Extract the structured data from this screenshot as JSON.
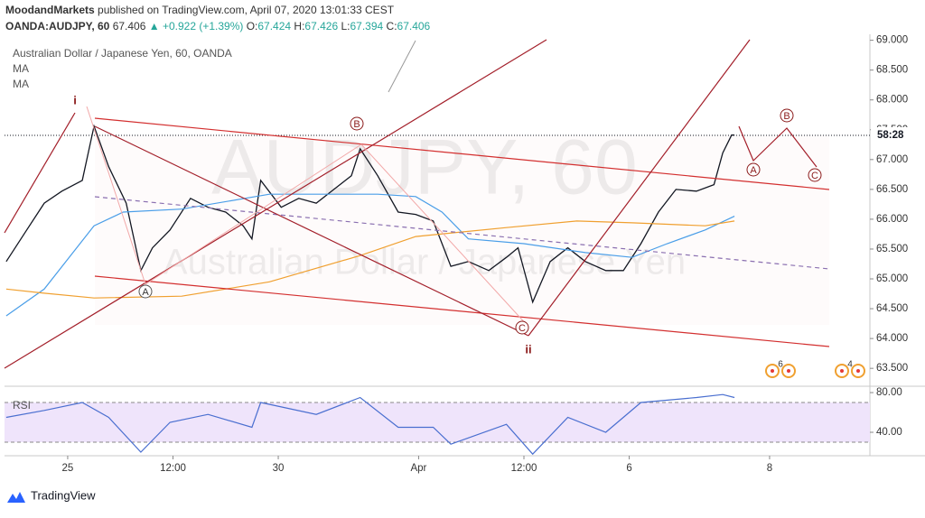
{
  "header": {
    "publisher": "MoodandMarkets",
    "published": "published on TradingView.com, April 07, 2020 13:01:33 CEST",
    "symbol": "OANDA:AUDJPY, 60",
    "last": "67.406",
    "change": "▲ +0.922 (+1.39%)",
    "open_label": "O:",
    "open": "67.424",
    "high_label": "H:",
    "high": "67.426",
    "low_label": "L:",
    "low": "67.394",
    "close_label": "C:",
    "close": "67.406"
  },
  "watermark": {
    "symbol": "AUDJPY, 60",
    "name": "Australian Dollar / Japanese Yen"
  },
  "waves": {
    "i": "i",
    "ii": "ii",
    "a1": "A",
    "b1": "B",
    "c1": "C",
    "a2": "A",
    "b2": "B",
    "c2": "C"
  },
  "events": [
    "6",
    "4"
  ],
  "countdown": "58:28",
  "footer": "TradingView",
  "chart_data": [
    {
      "type": "line",
      "xlim": [
        -21.6,
        274.3
      ],
      "ylim": [
        63.2,
        69.1
      ],
      "yticks": [
        {
          "value": 63.5,
          "label": "63.500"
        },
        {
          "value": 64.0,
          "label": "64.000"
        },
        {
          "value": 64.5,
          "label": "64.500"
        },
        {
          "value": 65.0,
          "label": "65.000"
        },
        {
          "value": 65.5,
          "label": "65.500"
        },
        {
          "value": 66.0,
          "label": "66.000"
        },
        {
          "value": 66.5,
          "label": "66.500"
        },
        {
          "value": 67.0,
          "label": "67.000"
        },
        {
          "value": 67.5,
          "label": "67.500"
        },
        {
          "value": 68.0,
          "label": "68.000"
        },
        {
          "value": 68.5,
          "label": "68.500"
        },
        {
          "value": 69.0,
          "label": "69.000"
        }
      ],
      "last_price": 67.406,
      "x": [
        -21,
        -14,
        -8,
        -2,
        5,
        9,
        14,
        20,
        25,
        29,
        35,
        42,
        48,
        54,
        60,
        63,
        66,
        73,
        79,
        85,
        91,
        97,
        100,
        106,
        113,
        119,
        125,
        131,
        137,
        144,
        150,
        154,
        159,
        165,
        171,
        177,
        184,
        190,
        196,
        202,
        208,
        215,
        221,
        224,
        227,
        228
      ],
      "series": [
        {
          "name": "Australian Dollar / Japanese Yen, 60, OANDA",
          "color": "#131722",
          "values": [
            65.29,
            65.82,
            66.27,
            66.47,
            66.65,
            67.56,
            66.88,
            66.27,
            65.14,
            65.52,
            65.82,
            66.35,
            66.2,
            66.12,
            65.89,
            65.67,
            66.65,
            66.2,
            66.35,
            66.27,
            66.5,
            66.73,
            67.18,
            66.73,
            66.12,
            66.08,
            65.97,
            65.21,
            65.29,
            65.14,
            65.36,
            65.52,
            64.61,
            65.29,
            65.52,
            65.29,
            65.14,
            65.14,
            65.59,
            66.12,
            66.5,
            66.47,
            66.58,
            67.11,
            67.41,
            67.41
          ]
        },
        {
          "name": "MA",
          "color": "#4a9ee8",
          "x": [
            -21,
            -8,
            9,
            19,
            39,
            69,
            85,
            106,
            119,
            128,
            137,
            156,
            177,
            193,
            205,
            218,
            228
          ],
          "values": [
            64.38,
            64.83,
            65.89,
            66.12,
            66.17,
            66.42,
            66.42,
            66.42,
            66.38,
            66.12,
            65.67,
            65.59,
            65.44,
            65.36,
            65.59,
            65.82,
            66.05
          ]
        },
        {
          "name": "MA",
          "color": "#f0a030",
          "x": [
            -21,
            -8,
            9,
            39,
            69,
            100,
            119,
            150,
            174,
            193,
            218,
            228
          ],
          "values": [
            64.83,
            64.76,
            64.68,
            64.71,
            64.95,
            65.39,
            65.71,
            65.86,
            65.97,
            65.94,
            65.89,
            65.97
          ]
        }
      ]
    },
    {
      "type": "line",
      "xlim": [
        -21.6,
        274.3
      ],
      "ylim": [
        16.4,
        86.4
      ],
      "yticks": [
        {
          "value": 80,
          "label": "80.00"
        },
        {
          "value": 40,
          "label": "40.00"
        }
      ],
      "band": [
        30,
        70
      ],
      "xticks": [
        {
          "value": 0,
          "label": "25"
        },
        {
          "value": 36,
          "label": "12:00"
        },
        {
          "value": 72,
          "label": "30"
        },
        {
          "value": 120,
          "label": "Apr"
        },
        {
          "value": 156,
          "label": "12:00"
        },
        {
          "value": 192,
          "label": "6"
        },
        {
          "value": 240,
          "label": "8"
        }
      ],
      "series": [
        {
          "name": "RSI",
          "color": "#4a6fd0",
          "x": [
            -21,
            -8,
            5,
            14,
            25,
            35,
            48,
            63,
            66,
            85,
            100,
            113,
            125,
            131,
            150,
            159,
            171,
            184,
            196,
            215,
            224,
            228
          ],
          "values": [
            55,
            62,
            70,
            55,
            20,
            50,
            58,
            45,
            70,
            58,
            75,
            45,
            45,
            28,
            48,
            18,
            55,
            40,
            70,
            75,
            78,
            75
          ]
        }
      ]
    }
  ]
}
